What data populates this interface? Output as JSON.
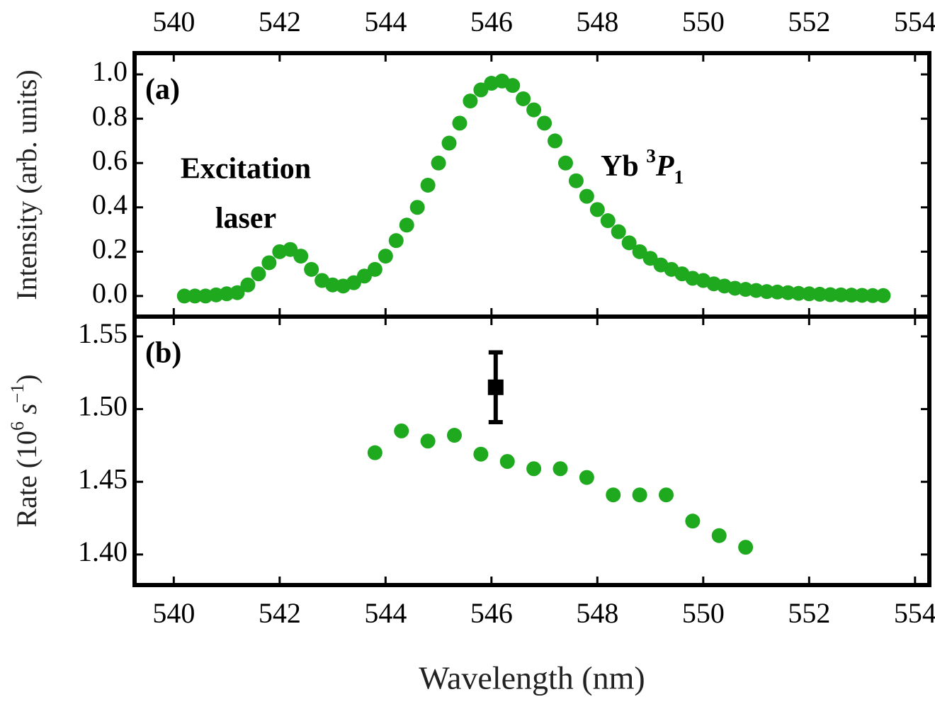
{
  "chart_data": [
    {
      "type": "scatter",
      "panel_label": "(a)",
      "ylabel": "Intensity (arb. units)",
      "xlim": [
        539.26,
        554.27
      ],
      "xticks": [
        540,
        542,
        544,
        546,
        548,
        550,
        552,
        554
      ],
      "ylim": [
        -0.093,
        1.096
      ],
      "yticks": [
        {
          "value": 0,
          "label": "0.0"
        },
        {
          "value": 0.2,
          "label": "0.2"
        },
        {
          "value": 0.4,
          "label": "0.4"
        },
        {
          "value": 0.6,
          "label": "0.6"
        },
        {
          "value": 0.8,
          "label": "0.8"
        },
        {
          "value": 1,
          "label": "1.0"
        }
      ],
      "annotations": [
        {
          "lines": [
            "Excitation",
            "laser"
          ]
        },
        {
          "parts": [
            {
              "text": "Yb "
            },
            {
              "text": "3",
              "style": "sup"
            },
            {
              "text": "P",
              "style": "italic"
            },
            {
              "text": "1",
              "style": "sub"
            }
          ]
        }
      ],
      "series": [
        {
          "color": "#1fa91f",
          "x": [
            540.2,
            540.4,
            540.6,
            540.8,
            541.0,
            541.2,
            541.4,
            541.6,
            541.8,
            542.0,
            542.2,
            542.4,
            542.6,
            542.8,
            543.0,
            543.2,
            543.4,
            543.6,
            543.8,
            544.0,
            544.2,
            544.4,
            544.6,
            544.8,
            545.0,
            545.2,
            545.4,
            545.6,
            545.8,
            546.0,
            546.2,
            546.4,
            546.6,
            546.8,
            547.0,
            547.2,
            547.4,
            547.6,
            547.8,
            548.0,
            548.2,
            548.4,
            548.6,
            548.8,
            549.0,
            549.2,
            549.4,
            549.6,
            549.8,
            550.0,
            550.2,
            550.4,
            550.6,
            550.8,
            551.0,
            551.2,
            551.4,
            551.6,
            551.8,
            552.0,
            552.2,
            552.4,
            552.6,
            552.8,
            553.0,
            553.2,
            553.4
          ],
          "values": [
            0.0,
            0.0,
            0.0,
            0.005,
            0.01,
            0.015,
            0.05,
            0.1,
            0.15,
            0.2,
            0.21,
            0.18,
            0.12,
            0.07,
            0.05,
            0.045,
            0.06,
            0.09,
            0.12,
            0.18,
            0.25,
            0.32,
            0.4,
            0.5,
            0.6,
            0.69,
            0.78,
            0.88,
            0.93,
            0.96,
            0.97,
            0.95,
            0.89,
            0.84,
            0.78,
            0.7,
            0.6,
            0.52,
            0.45,
            0.39,
            0.34,
            0.29,
            0.24,
            0.2,
            0.17,
            0.14,
            0.12,
            0.1,
            0.08,
            0.07,
            0.055,
            0.045,
            0.035,
            0.03,
            0.025,
            0.02,
            0.018,
            0.015,
            0.012,
            0.01,
            0.008,
            0.006,
            0.005,
            0.004,
            0.003,
            0.002,
            0.002
          ]
        }
      ]
    },
    {
      "type": "scatter",
      "panel_label": "(b)",
      "ylabel_parts": [
        {
          "text": "Rate (10"
        },
        {
          "text": "6",
          "style": "sup"
        },
        {
          "text": " s",
          "style": "italic"
        },
        {
          "text": "−1",
          "style": "sup"
        },
        {
          "text": ")"
        }
      ],
      "xlabel": "Wavelength (nm)",
      "xlim": [
        539.26,
        554.27
      ],
      "xticks": [
        540,
        542,
        544,
        546,
        548,
        550,
        552,
        554
      ],
      "ylim": [
        1.379,
        1.5636
      ],
      "yticks": [
        {
          "value": 1.4,
          "label": "1.40"
        },
        1.45,
        {
          "value": 1.5,
          "label": "1.50"
        },
        1.55
      ],
      "series": [
        {
          "color": "#1fa91f",
          "x": [
            543.8,
            544.3,
            544.8,
            545.3,
            545.8,
            546.3,
            546.8,
            547.3,
            547.8,
            548.3,
            548.8,
            549.3,
            549.8,
            550.3,
            550.8
          ],
          "values": [
            1.47,
            1.485,
            1.478,
            1.482,
            1.469,
            1.464,
            1.459,
            1.459,
            1.453,
            1.441,
            1.441,
            1.441,
            1.423,
            1.413,
            1.405
          ]
        },
        {
          "color": "#000000",
          "marker": "square",
          "x": [
            546.08
          ],
          "values": [
            1.515
          ],
          "errors": [
            0.024
          ]
        }
      ]
    }
  ]
}
